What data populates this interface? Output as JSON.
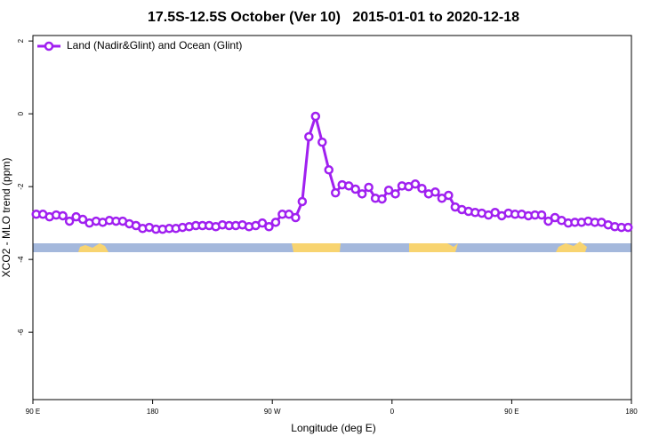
{
  "chart_data": {
    "type": "line",
    "title": "17.5S-12.5S October (Ver 10)   2015-01-01 to 2020-12-18",
    "x_label": "Longitude (deg E)",
    "y_label": "XCO2 - MLO trend (ppm)",
    "xlim": [
      90,
      540
    ],
    "ylim": [
      -7.85,
      2.15
    ],
    "xticks": [
      {
        "value": 90,
        "label": "90 E"
      },
      {
        "value": 180,
        "label": "180"
      },
      {
        "value": 270,
        "label": "90 W"
      },
      {
        "value": 360,
        "label": "0"
      },
      {
        "value": 450,
        "label": "90 E"
      },
      {
        "value": 540,
        "label": "180"
      }
    ],
    "yticks": [
      2,
      0,
      -2,
      -4,
      -6
    ],
    "legend": "top-left",
    "x": [
      92.5,
      97.5,
      102.5,
      107.5,
      112.5,
      117.5,
      122.5,
      127.5,
      132.5,
      137.5,
      142.5,
      147.5,
      152.5,
      157.5,
      162.5,
      167.5,
      172.5,
      177.5,
      182.5,
      187.5,
      192.5,
      197.5,
      202.5,
      207.5,
      212.5,
      217.5,
      222.5,
      227.5,
      232.5,
      237.5,
      242.5,
      247.5,
      252.5,
      257.5,
      262.5,
      267.5,
      272.5,
      277.5,
      282.5,
      287.5,
      292.5,
      297.5,
      302.5,
      307.5,
      312.5,
      317.5,
      322.5,
      327.5,
      332.5,
      337.5,
      342.5,
      347.5,
      352.5,
      357.5,
      362.5,
      367.5,
      372.5,
      377.5,
      382.5,
      387.5,
      392.5,
      397.5,
      402.5,
      407.5,
      412.5,
      417.5,
      422.5,
      427.5,
      432.5,
      437.5,
      442.5,
      447.5,
      452.5,
      457.5,
      462.5,
      467.5,
      472.5,
      477.5,
      482.5,
      487.5,
      492.5,
      497.5,
      502.5,
      507.5,
      512.5,
      517.5,
      522.5,
      527.5,
      532.5,
      537.5
    ],
    "series": [
      {
        "name": "Land (Nadir&Glint) and Ocean (Glint)",
        "color": "#a020f0",
        "values": [
          -2.76,
          -2.76,
          -2.83,
          -2.78,
          -2.8,
          -2.95,
          -2.83,
          -2.9,
          -3.0,
          -2.95,
          -2.98,
          -2.93,
          -2.95,
          -2.95,
          -3.02,
          -3.07,
          -3.15,
          -3.12,
          -3.17,
          -3.17,
          -3.15,
          -3.15,
          -3.12,
          -3.1,
          -3.07,
          -3.07,
          -3.07,
          -3.1,
          -3.05,
          -3.07,
          -3.07,
          -3.05,
          -3.1,
          -3.07,
          -3.0,
          -3.1,
          -2.98,
          -2.76,
          -2.76,
          -2.85,
          -2.41,
          -0.63,
          -0.07,
          -0.78,
          -1.54,
          -2.17,
          -1.95,
          -1.98,
          -2.07,
          -2.2,
          -2.02,
          -2.32,
          -2.34,
          -2.1,
          -2.2,
          -1.98,
          -2.0,
          -1.93,
          -2.05,
          -2.2,
          -2.15,
          -2.32,
          -2.24,
          -2.56,
          -2.63,
          -2.68,
          -2.71,
          -2.73,
          -2.78,
          -2.71,
          -2.8,
          -2.73,
          -2.76,
          -2.76,
          -2.8,
          -2.78,
          -2.78,
          -2.95,
          -2.85,
          -2.93,
          -3.0,
          -2.98,
          -2.98,
          -2.95,
          -2.98,
          -2.98,
          -3.05,
          -3.1,
          -3.12,
          -3.12
        ]
      }
    ]
  }
}
